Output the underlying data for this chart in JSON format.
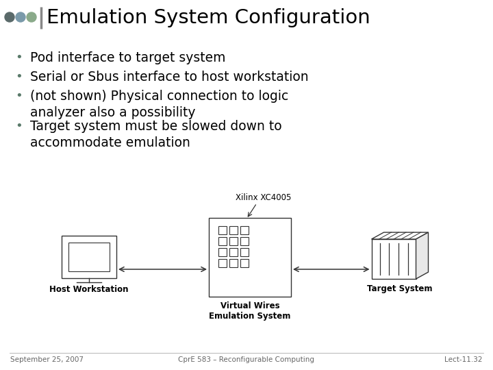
{
  "title": "Emulation System Configuration",
  "bullets": [
    "Pod interface to target system",
    "Serial or Sbus interface to host workstation",
    "(not shown) Physical connection to logic\nanalyzer also a possibility",
    "Target system must be slowed down to\naccommodate emulation"
  ],
  "footer_left": "September 25, 2007",
  "footer_center": "CprE 583 – Reconfigurable Computing",
  "footer_right": "Lect-11.32",
  "diagram_label_host": "Host Workstation",
  "diagram_label_vwes": "Virtual Wires\nEmulation System",
  "diagram_label_target": "Target System",
  "diagram_label_chip": "Xilinx XC4005",
  "bg_color": "#ffffff",
  "title_color": "#000000",
  "bullet_color": "#000000",
  "bullet_dot_color": "#5a7a6a",
  "footer_color": "#666666",
  "dot_colors": [
    "#5a6a6a",
    "#7a9aaa",
    "#8aaa8a"
  ],
  "diagram_line_color": "#333333"
}
